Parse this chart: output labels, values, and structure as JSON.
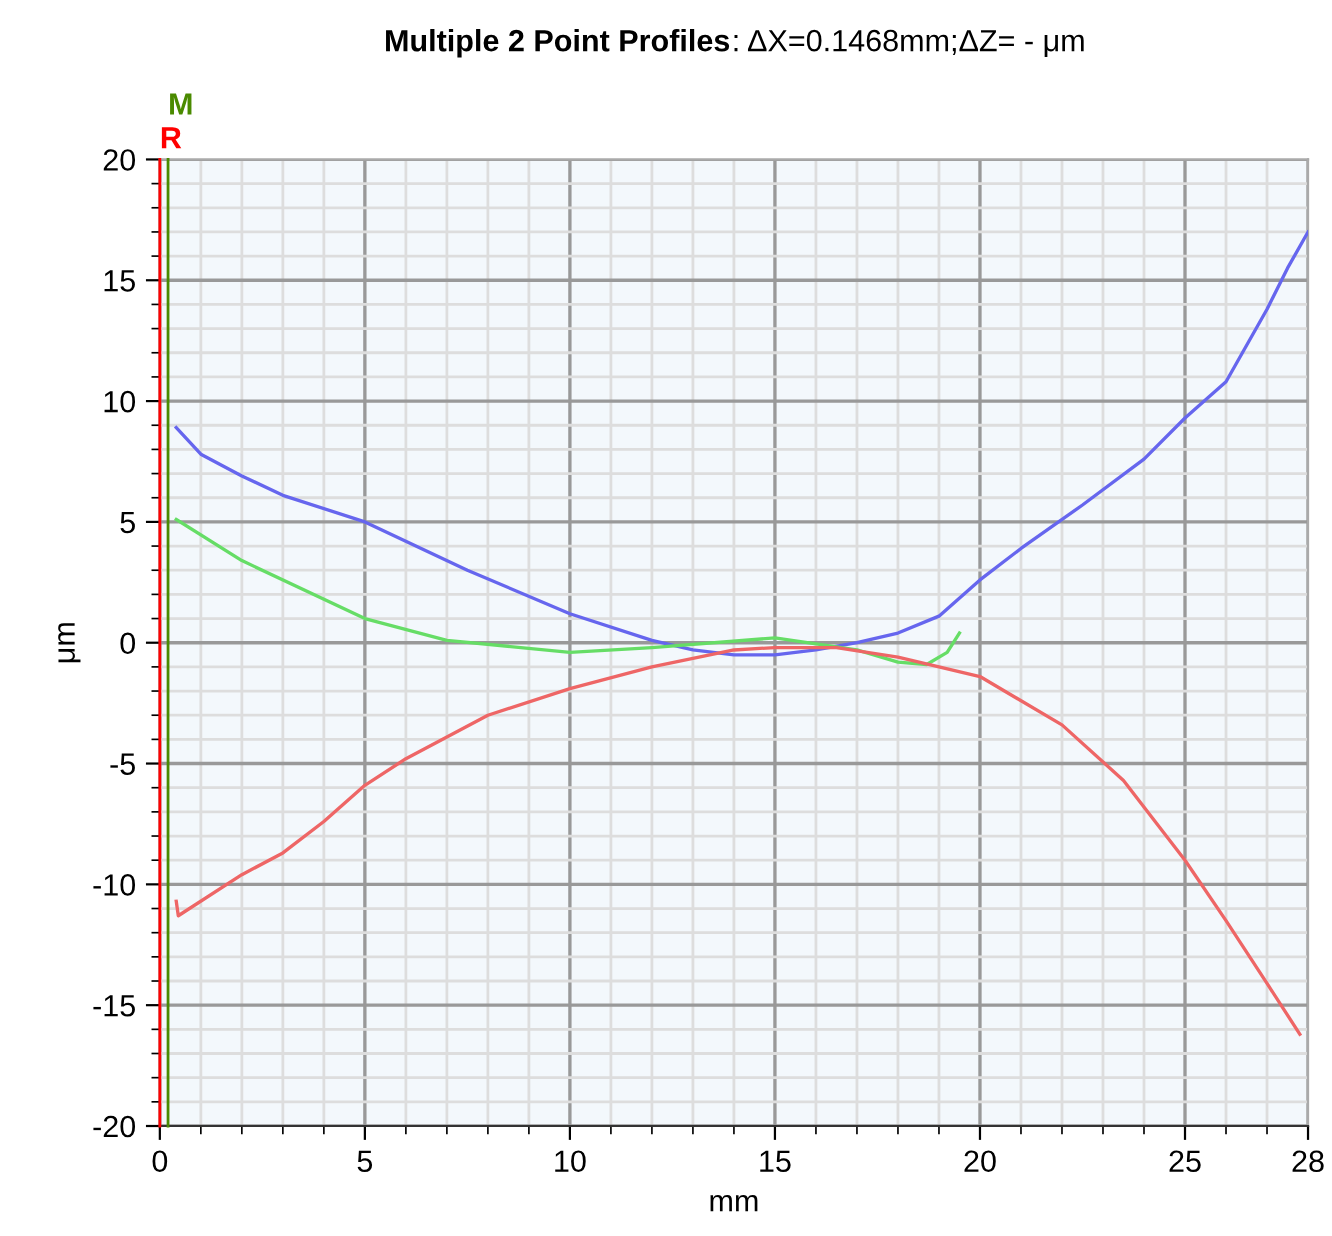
{
  "chart_data": {
    "type": "line",
    "title": "Multiple 2 Point Profiles",
    "subtitle": ": ΔX=0.1468mm;ΔZ= - μm",
    "xlabel": "mm",
    "ylabel": "μm",
    "xlim": [
      0,
      28
    ],
    "ylim": [
      -20,
      20
    ],
    "xticks": [
      0,
      5,
      10,
      15,
      20,
      25,
      28
    ],
    "yticks": [
      -20,
      -15,
      -10,
      -5,
      0,
      5,
      10,
      15,
      20
    ],
    "grid": true,
    "line_style": "solid",
    "marker": "none",
    "ref_lines": [
      {
        "axis": "x",
        "value": 0,
        "label": "R",
        "color": "#ff0000"
      },
      {
        "axis": "x",
        "value": 0.2,
        "label": "M",
        "color": "#4a8a00"
      }
    ],
    "series": [
      {
        "color": "#6666ee",
        "x": [
          0.4,
          1,
          2,
          3,
          5,
          7.5,
          10,
          12,
          13,
          14,
          15,
          16,
          17,
          18,
          19,
          20,
          21,
          22.5,
          24,
          25,
          26,
          27,
          27.5,
          28
        ],
        "values": [
          8.9,
          7.8,
          6.9,
          6.1,
          5.0,
          3.0,
          1.2,
          0.1,
          -0.3,
          -0.5,
          -0.5,
          -0.3,
          0.0,
          0.4,
          1.1,
          2.6,
          3.9,
          5.7,
          7.6,
          9.3,
          10.8,
          13.8,
          15.5,
          17.0
        ]
      },
      {
        "color": "#66dd66",
        "x": [
          0.4,
          2,
          5,
          7,
          10,
          12,
          15,
          17,
          18,
          18.7,
          19.2,
          19.5
        ],
        "values": [
          5.1,
          3.4,
          1.0,
          0.1,
          -0.4,
          -0.2,
          0.2,
          -0.3,
          -0.8,
          -0.9,
          -0.4,
          0.4
        ]
      },
      {
        "color": "#ee6666",
        "x": [
          0.4,
          0.45,
          2,
          3,
          4,
          5,
          6,
          8,
          10,
          12,
          14,
          15,
          16.5,
          18,
          20,
          22,
          23.5,
          25,
          26,
          27,
          27.8
        ],
        "values": [
          -10.7,
          -11.3,
          -9.6,
          -8.7,
          -7.4,
          -5.9,
          -4.8,
          -3.0,
          -1.9,
          -1.0,
          -0.3,
          -0.2,
          -0.2,
          -0.6,
          -1.4,
          -3.4,
          -5.7,
          -9.0,
          -11.5,
          -14.1,
          -16.2
        ]
      }
    ]
  }
}
